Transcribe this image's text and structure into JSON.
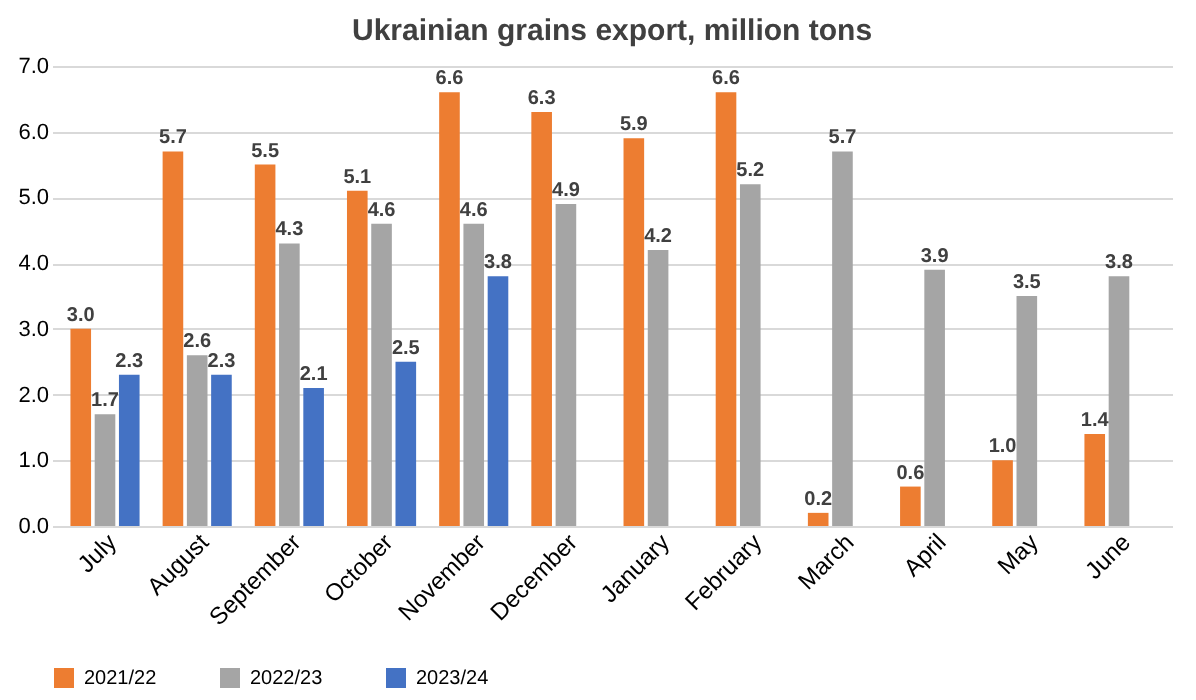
{
  "chart_data": {
    "type": "bar",
    "title": "Ukrainian grains export, million tons",
    "categories": [
      "July",
      "August",
      "September",
      "October",
      "November",
      "December",
      "January",
      "February",
      "March",
      "April",
      "May",
      "June"
    ],
    "series": [
      {
        "name": "2021/22",
        "color": "#ed7d31",
        "values": [
          3.0,
          5.7,
          5.5,
          5.1,
          6.6,
          6.3,
          5.9,
          6.6,
          0.2,
          0.6,
          1.0,
          1.4
        ],
        "value_labels": [
          "3.0",
          "5.7",
          "5.5",
          "5.1",
          "6.6",
          "6.3",
          "5.9",
          "6.6",
          "0.2",
          "0.6",
          "1.0",
          "1.4"
        ]
      },
      {
        "name": "2022/23",
        "color": "#a5a5a5",
        "values": [
          1.7,
          2.6,
          4.3,
          4.6,
          4.6,
          4.9,
          4.2,
          5.2,
          5.7,
          3.9,
          3.5,
          3.8
        ],
        "value_labels": [
          "1.7",
          "2.6",
          "4.3",
          "4.6",
          "4.6",
          "4.9",
          "4.2",
          "5.2",
          "5.7",
          "3.9",
          "3.5",
          "3.8"
        ]
      },
      {
        "name": "2023/24",
        "color": "#4472c4",
        "values": [
          2.3,
          2.3,
          2.1,
          2.5,
          3.8,
          null,
          null,
          null,
          null,
          null,
          null,
          null
        ],
        "value_labels": [
          "2.3",
          "2.3",
          "2.1",
          "2.5",
          "3.8",
          null,
          null,
          null,
          null,
          null,
          null,
          null
        ]
      }
    ],
    "ylim": [
      0,
      7
    ],
    "yticks": [
      {
        "value": 0,
        "label": "0.0"
      },
      {
        "value": 1,
        "label": "1.0"
      },
      {
        "value": 2,
        "label": "2.0"
      },
      {
        "value": 3,
        "label": "3.0"
      },
      {
        "value": 4,
        "label": "4.0"
      },
      {
        "value": 5,
        "label": "5.0"
      },
      {
        "value": 6,
        "label": "6.0"
      },
      {
        "value": 7,
        "label": "7.0"
      }
    ],
    "grid": "y",
    "legend": "bottom"
  }
}
